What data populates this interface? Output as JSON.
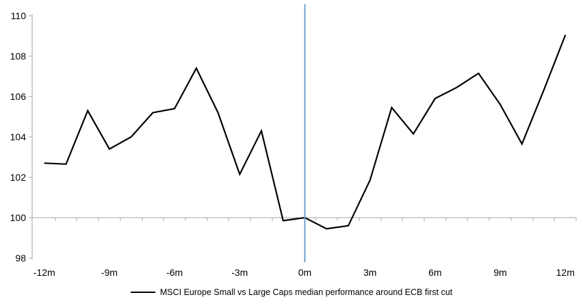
{
  "chart": {
    "legend_label": "MSCI Europe Small vs Large Caps median performance around ECB first cut",
    "colors": {
      "series": "#000000",
      "event_line": "#6FA2CE",
      "axis": "#A6A6A6",
      "text": "#000000",
      "background": "#FFFFFF"
    }
  },
  "chart_data": {
    "type": "line",
    "title": "",
    "legend_position": "bottom",
    "grid": false,
    "x": [
      -12,
      -11,
      -10,
      -9,
      -8,
      -7,
      -6,
      -5,
      -4,
      -3,
      -2,
      -1,
      0,
      1,
      2,
      3,
      4,
      5,
      6,
      7,
      8,
      9,
      10,
      11,
      12
    ],
    "x_tick_labels": [
      "-12m",
      "-9m",
      "-6m",
      "-3m",
      "0m",
      "3m",
      "6m",
      "9m",
      "12m"
    ],
    "x_tick_values": [
      -12,
      -9,
      -6,
      -3,
      0,
      3,
      6,
      9,
      12
    ],
    "xlim": [
      -12.5,
      12.5
    ],
    "y_ticks": [
      98,
      100,
      102,
      104,
      106,
      108,
      110
    ],
    "ylim": [
      98,
      110
    ],
    "x_axis_crosses_at": 100,
    "series": [
      {
        "name": "MSCI Europe Small vs Large Caps median performance around ECB first cut",
        "color": "#000000",
        "values": [
          102.7,
          102.65,
          105.3,
          103.4,
          104.0,
          105.2,
          105.4,
          107.4,
          105.2,
          102.15,
          104.3,
          99.85,
          100.0,
          99.45,
          99.6,
          101.85,
          105.45,
          104.15,
          105.9,
          106.45,
          107.15,
          105.6,
          103.65,
          106.3,
          109.05
        ]
      }
    ],
    "annotations": [
      {
        "type": "vline",
        "x": 0,
        "color": "#6FA2CE"
      }
    ]
  }
}
